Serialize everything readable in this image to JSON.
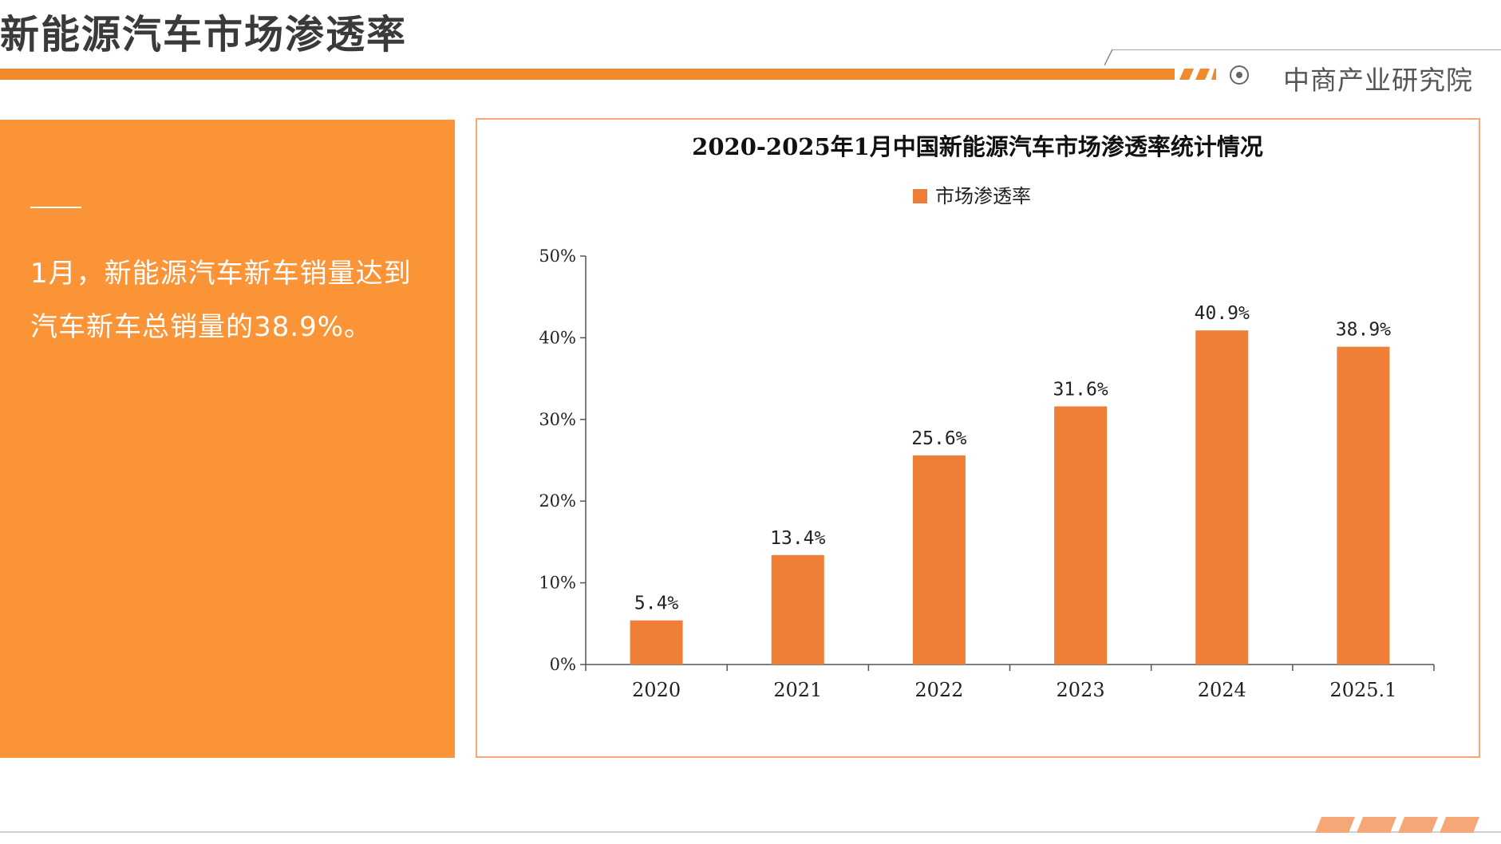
{
  "header": {
    "page_title": "新能源汽车市场渗透率",
    "brand": "中商产业研究院",
    "icons": [
      "target-icon",
      "stripe-marks"
    ]
  },
  "side_panel": {
    "text": "1月，新能源汽车新车销量达到汽车新车总销量的38.9%。"
  },
  "colors": {
    "accent": "#f08a2c",
    "panel": "#fb9437",
    "bar": "#ef7f36",
    "frame": "#f6a777"
  },
  "chart_data": {
    "type": "bar",
    "title": "2020-2025年1月中国新能源汽车市场渗透率统计情况",
    "legend": [
      "市场渗透率"
    ],
    "legend_position": "top-center",
    "categories": [
      "2020",
      "2021",
      "2022",
      "2023",
      "2024",
      "2025.1"
    ],
    "series": [
      {
        "name": "市场渗透率",
        "values": [
          5.4,
          13.4,
          25.6,
          31.6,
          40.9,
          38.9
        ]
      }
    ],
    "data_labels": [
      "5.4%",
      "13.4%",
      "25.6%",
      "31.6%",
      "40.9%",
      "38.9%"
    ],
    "yticks": [
      "0%",
      "10%",
      "20%",
      "30%",
      "40%",
      "50%"
    ],
    "ylim": [
      0,
      50
    ],
    "grid": false
  }
}
